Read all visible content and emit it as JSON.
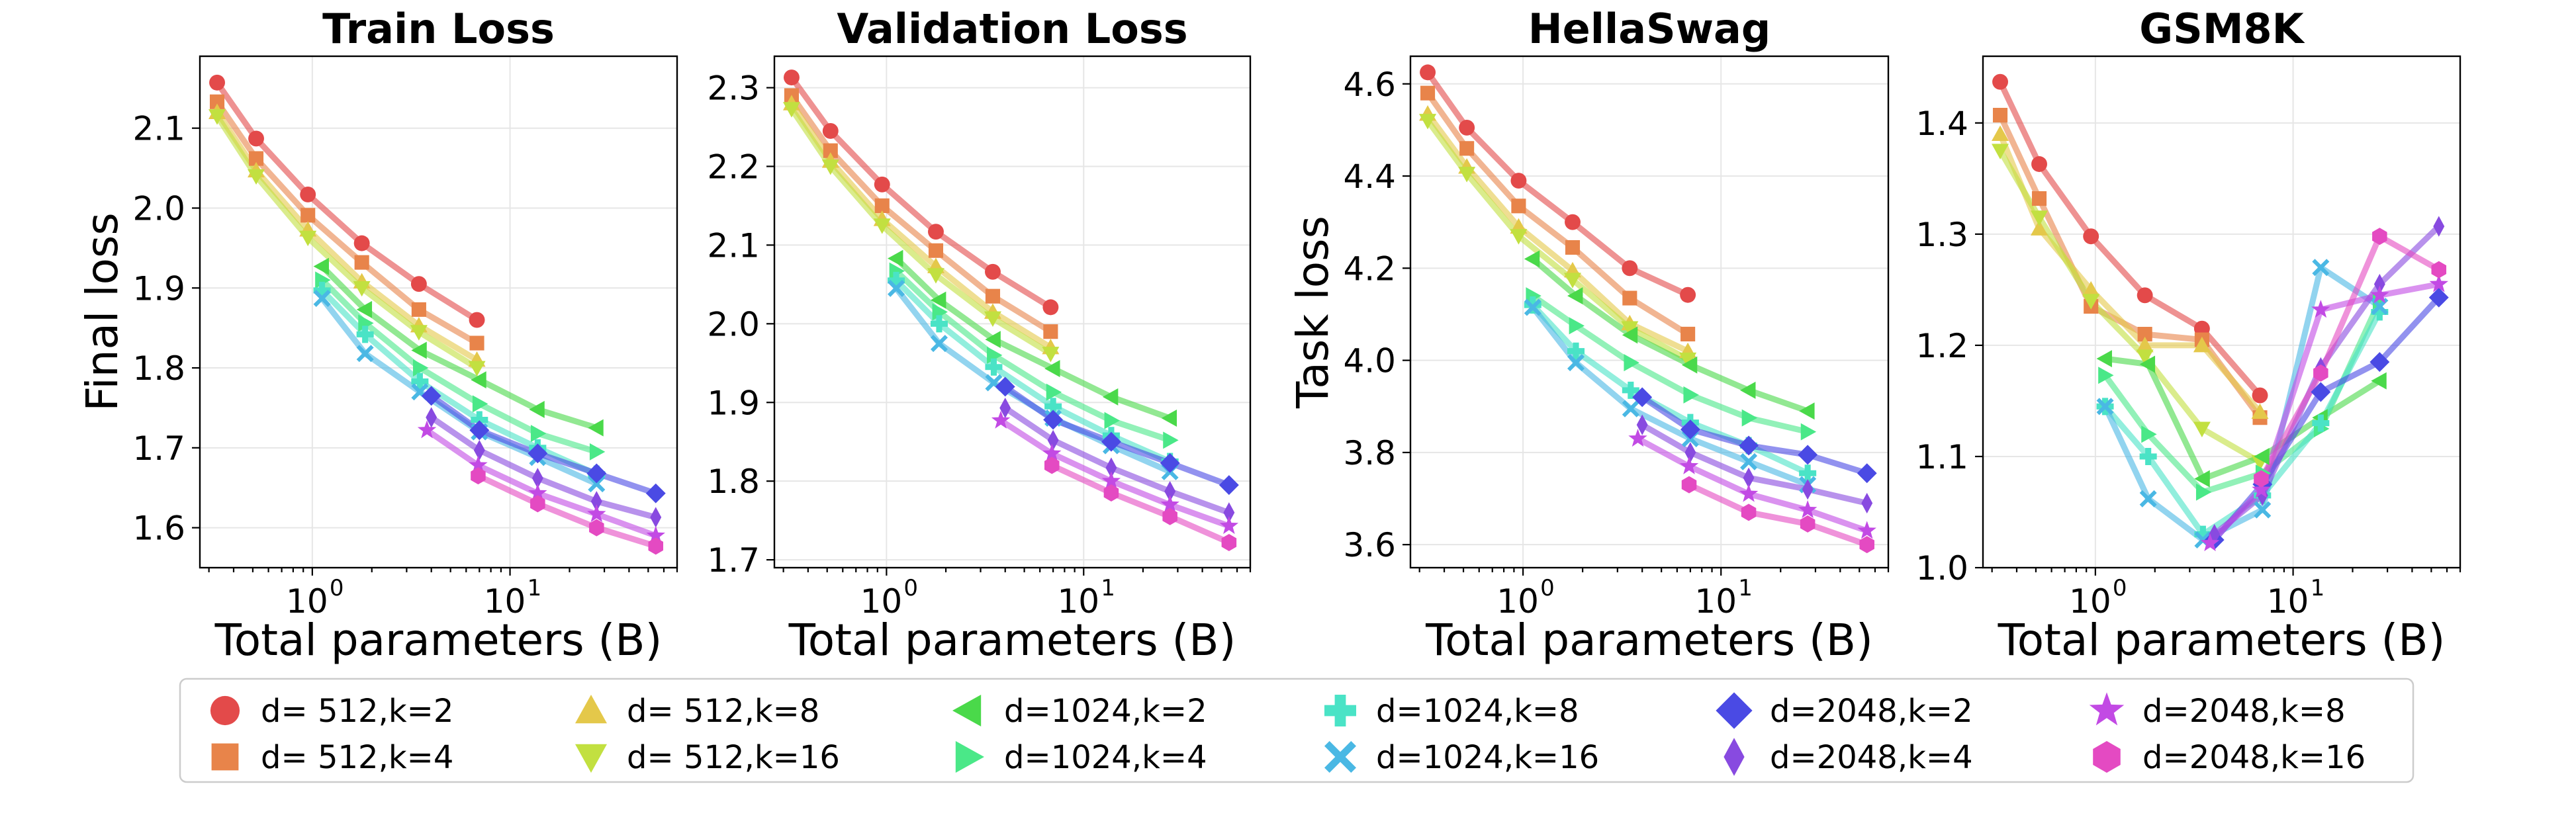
{
  "figure": {
    "x_axis_label": "Total parameters (B)",
    "legend_location": "bottom-center"
  },
  "chart_data": [
    {
      "type": "line",
      "title": "Train Loss",
      "xlabel": "Total parameters (B)",
      "ylabel": "Final loss",
      "xscale": "log",
      "xlim": [
        0.27,
        70
      ],
      "ylim": [
        1.55,
        2.19
      ],
      "yticks": [
        1.6,
        1.7,
        1.8,
        1.9,
        2.0,
        2.1
      ],
      "ytick_labels": [
        "1.6",
        "1.7",
        "1.8",
        "1.9",
        "2.0",
        "2.1"
      ],
      "series": [
        {
          "id": "d512k2",
          "x": [
            0.33,
            0.52,
            0.95,
            1.78,
            3.46,
            6.8
          ],
          "y": [
            2.157,
            2.087,
            2.017,
            1.956,
            1.905,
            1.86
          ]
        },
        {
          "id": "d512k4",
          "x": [
            0.33,
            0.52,
            0.95,
            1.78,
            3.46,
            6.8
          ],
          "y": [
            2.133,
            2.062,
            1.991,
            1.932,
            1.873,
            1.831
          ]
        },
        {
          "id": "d512k8",
          "x": [
            0.33,
            0.52,
            0.95,
            1.78,
            3.46,
            6.8
          ],
          "y": [
            2.12,
            2.047,
            1.973,
            1.908,
            1.853,
            1.81
          ]
        },
        {
          "id": "d512k16",
          "x": [
            0.33,
            0.52,
            0.95,
            1.78,
            3.46,
            6.8
          ],
          "y": [
            2.115,
            2.04,
            1.963,
            1.9,
            1.845,
            1.8
          ]
        },
        {
          "id": "d1024k2",
          "x": [
            1.12,
            1.85,
            3.5,
            7.0,
            13.8,
            27.4
          ],
          "y": [
            1.927,
            1.873,
            1.822,
            1.785,
            1.748,
            1.725
          ]
        },
        {
          "id": "d1024k4",
          "x": [
            1.12,
            1.85,
            3.5,
            7.0,
            13.8,
            27.4
          ],
          "y": [
            1.91,
            1.856,
            1.8,
            1.755,
            1.718,
            1.695
          ]
        },
        {
          "id": "d1024k8",
          "x": [
            1.12,
            1.85,
            3.5,
            7.0,
            13.8,
            27.4
          ],
          "y": [
            1.897,
            1.842,
            1.783,
            1.735,
            1.7,
            1.667
          ]
        },
        {
          "id": "d1024k16",
          "x": [
            1.12,
            1.85,
            3.5,
            7.0,
            13.8,
            27.4
          ],
          "y": [
            1.887,
            1.818,
            1.77,
            1.72,
            1.688,
            1.655
          ]
        },
        {
          "id": "d2048k2",
          "x": [
            4.0,
            7.0,
            13.8,
            27.4,
            54.6
          ],
          "y": [
            1.765,
            1.722,
            1.693,
            1.668,
            1.643
          ]
        },
        {
          "id": "d2048k4",
          "x": [
            4.0,
            7.0,
            13.8,
            27.4,
            54.6
          ],
          "y": [
            1.738,
            1.697,
            1.662,
            1.633,
            1.613
          ]
        },
        {
          "id": "d2048k8",
          "x": [
            3.8,
            6.9,
            13.8,
            27.4,
            54.6
          ],
          "y": [
            1.722,
            1.678,
            1.643,
            1.617,
            1.59
          ]
        },
        {
          "id": "d2048k16",
          "x": [
            6.9,
            13.8,
            27.4,
            54.6
          ],
          "y": [
            1.665,
            1.63,
            1.6,
            1.577
          ]
        }
      ]
    },
    {
      "type": "line",
      "title": "Validation Loss",
      "xlabel": "Total parameters (B)",
      "ylabel": "",
      "xscale": "log",
      "xlim": [
        0.27,
        70
      ],
      "ylim": [
        1.69,
        2.34
      ],
      "yticks": [
        1.7,
        1.8,
        1.9,
        2.0,
        2.1,
        2.2,
        2.3
      ],
      "ytick_labels": [
        "1.7",
        "1.8",
        "1.9",
        "2.0",
        "2.1",
        "2.2",
        "2.3"
      ],
      "series": [
        {
          "id": "d512k2",
          "x": [
            0.33,
            0.52,
            0.95,
            1.78,
            3.46,
            6.8
          ],
          "y": [
            2.313,
            2.245,
            2.177,
            2.117,
            2.066,
            2.021
          ]
        },
        {
          "id": "d512k4",
          "x": [
            0.33,
            0.52,
            0.95,
            1.78,
            3.46,
            6.8
          ],
          "y": [
            2.29,
            2.22,
            2.15,
            2.093,
            2.035,
            1.99
          ]
        },
        {
          "id": "d512k8",
          "x": [
            0.33,
            0.52,
            0.95,
            1.78,
            3.46,
            6.8
          ],
          "y": [
            2.28,
            2.207,
            2.133,
            2.073,
            2.015,
            1.97
          ]
        },
        {
          "id": "d512k16",
          "x": [
            0.33,
            0.52,
            0.95,
            1.78,
            3.46,
            6.8
          ],
          "y": [
            2.273,
            2.2,
            2.125,
            2.062,
            2.007,
            1.962
          ]
        },
        {
          "id": "d1024k2",
          "x": [
            1.12,
            1.85,
            3.5,
            7.0,
            13.8,
            27.4
          ],
          "y": [
            2.083,
            2.03,
            1.98,
            1.943,
            1.907,
            1.88
          ]
        },
        {
          "id": "d1024k4",
          "x": [
            1.12,
            1.85,
            3.5,
            7.0,
            13.8,
            27.4
          ],
          "y": [
            2.067,
            2.015,
            1.96,
            1.913,
            1.877,
            1.852
          ]
        },
        {
          "id": "d1024k8",
          "x": [
            1.12,
            1.85,
            3.5,
            7.0,
            13.8,
            27.4
          ],
          "y": [
            2.055,
            2.0,
            1.945,
            1.895,
            1.858,
            1.825
          ]
        },
        {
          "id": "d1024k16",
          "x": [
            1.12,
            1.85,
            3.5,
            7.0,
            13.8,
            27.4
          ],
          "y": [
            2.045,
            1.975,
            1.925,
            1.88,
            1.845,
            1.812
          ]
        },
        {
          "id": "d2048k2",
          "x": [
            4.0,
            7.0,
            13.8,
            27.4,
            54.6
          ],
          "y": [
            1.92,
            1.878,
            1.85,
            1.823,
            1.795
          ]
        },
        {
          "id": "d2048k4",
          "x": [
            4.0,
            7.0,
            13.8,
            27.4,
            54.6
          ],
          "y": [
            1.893,
            1.852,
            1.817,
            1.787,
            1.76
          ]
        },
        {
          "id": "d2048k8",
          "x": [
            3.8,
            6.9,
            13.8,
            27.4,
            54.6
          ],
          "y": [
            1.877,
            1.835,
            1.8,
            1.77,
            1.743
          ]
        },
        {
          "id": "d2048k16",
          "x": [
            6.9,
            13.8,
            27.4,
            54.6
          ],
          "y": [
            1.82,
            1.785,
            1.755,
            1.722
          ]
        }
      ]
    },
    {
      "type": "line",
      "title": "HellaSwag",
      "xlabel": "Total parameters (B)",
      "ylabel": "Task loss",
      "xscale": "log",
      "xlim": [
        0.27,
        70
      ],
      "ylim": [
        3.55,
        4.66
      ],
      "yticks": [
        3.6,
        3.8,
        4.0,
        4.2,
        4.4,
        4.6
      ],
      "ytick_labels": [
        "3.6",
        "3.8",
        "4.0",
        "4.2",
        "4.4",
        "4.6"
      ],
      "series": [
        {
          "id": "d512k2",
          "x": [
            0.33,
            0.52,
            0.95,
            1.78,
            3.46,
            6.8
          ],
          "y": [
            4.625,
            4.505,
            4.39,
            4.3,
            4.2,
            4.142
          ]
        },
        {
          "id": "d512k4",
          "x": [
            0.33,
            0.52,
            0.95,
            1.78,
            3.46,
            6.8
          ],
          "y": [
            4.58,
            4.46,
            4.335,
            4.245,
            4.135,
            4.057
          ]
        },
        {
          "id": "d512k8",
          "x": [
            0.33,
            0.52,
            0.95,
            1.78,
            3.46,
            6.8
          ],
          "y": [
            4.535,
            4.42,
            4.29,
            4.195,
            4.08,
            4.02
          ]
        },
        {
          "id": "d512k16",
          "x": [
            0.33,
            0.52,
            0.95,
            1.78,
            3.46,
            6.8
          ],
          "y": [
            4.52,
            4.405,
            4.27,
            4.175,
            4.07,
            4.002
          ]
        },
        {
          "id": "d1024k2",
          "x": [
            1.12,
            1.85,
            3.5,
            7.0,
            13.8,
            27.4
          ],
          "y": [
            4.22,
            4.14,
            4.055,
            3.99,
            3.935,
            3.89
          ]
        },
        {
          "id": "d1024k4",
          "x": [
            1.12,
            1.85,
            3.5,
            7.0,
            13.8,
            27.4
          ],
          "y": [
            4.14,
            4.075,
            3.995,
            3.925,
            3.875,
            3.845
          ]
        },
        {
          "id": "d1024k8",
          "x": [
            1.12,
            1.85,
            3.5,
            7.0,
            13.8,
            27.4
          ],
          "y": [
            4.12,
            4.02,
            3.935,
            3.865,
            3.815,
            3.755
          ]
        },
        {
          "id": "d1024k16",
          "x": [
            1.12,
            1.85,
            3.5,
            7.0,
            13.8,
            27.4
          ],
          "y": [
            4.115,
            3.995,
            3.895,
            3.83,
            3.78,
            3.73
          ]
        },
        {
          "id": "d2048k2",
          "x": [
            4.0,
            7.0,
            13.8,
            27.4,
            54.6
          ],
          "y": [
            3.92,
            3.85,
            3.815,
            3.795,
            3.755
          ]
        },
        {
          "id": "d2048k4",
          "x": [
            4.0,
            7.0,
            13.8,
            27.4,
            54.6
          ],
          "y": [
            3.86,
            3.8,
            3.745,
            3.72,
            3.69
          ]
        },
        {
          "id": "d2048k8",
          "x": [
            3.8,
            6.9,
            13.8,
            27.4,
            54.6
          ],
          "y": [
            3.83,
            3.77,
            3.71,
            3.675,
            3.63
          ]
        },
        {
          "id": "d2048k16",
          "x": [
            6.9,
            13.8,
            27.4,
            54.6
          ],
          "y": [
            3.73,
            3.67,
            3.645,
            3.6
          ]
        }
      ]
    },
    {
      "type": "line",
      "title": "GSM8K",
      "xlabel": "Total parameters (B)",
      "ylabel": "",
      "xscale": "log",
      "xlim": [
        0.27,
        70
      ],
      "ylim": [
        1.0,
        1.46
      ],
      "yticks": [
        1.0,
        1.1,
        1.2,
        1.3,
        1.4
      ],
      "ytick_labels": [
        "1.0",
        "1.1",
        "1.2",
        "1.3",
        "1.4"
      ],
      "series": [
        {
          "id": "d512k2",
          "x": [
            0.33,
            0.52,
            0.95,
            1.78,
            3.46,
            6.8
          ],
          "y": [
            1.437,
            1.363,
            1.298,
            1.245,
            1.215,
            1.155
          ]
        },
        {
          "id": "d512k4",
          "x": [
            0.33,
            0.52,
            0.95,
            1.78,
            3.46,
            6.8
          ],
          "y": [
            1.407,
            1.332,
            1.235,
            1.21,
            1.205,
            1.135
          ]
        },
        {
          "id": "d512k8",
          "x": [
            0.33,
            0.52,
            0.95,
            1.78,
            3.46,
            6.8
          ],
          "y": [
            1.39,
            1.305,
            1.25,
            1.2,
            1.2,
            1.14
          ]
        },
        {
          "id": "d512k16",
          "x": [
            0.33,
            0.52,
            0.95,
            1.78,
            3.46,
            6.8
          ],
          "y": [
            1.375,
            1.315,
            1.24,
            1.19,
            1.125,
            1.095
          ]
        },
        {
          "id": "d1024k2",
          "x": [
            1.12,
            1.85,
            3.5,
            7.0,
            13.8,
            27.4
          ],
          "y": [
            1.188,
            1.183,
            1.08,
            1.1,
            1.135,
            1.168
          ]
        },
        {
          "id": "d1024k4",
          "x": [
            1.12,
            1.85,
            3.5,
            7.0,
            13.8,
            27.4
          ],
          "y": [
            1.173,
            1.12,
            1.068,
            1.085,
            1.125,
            1.24
          ]
        },
        {
          "id": "d1024k8",
          "x": [
            1.12,
            1.85,
            3.5,
            7.0,
            13.8,
            27.4
          ],
          "y": [
            1.145,
            1.1,
            1.03,
            1.065,
            1.13,
            1.23
          ]
        },
        {
          "id": "d1024k16",
          "x": [
            1.12,
            1.85,
            3.5,
            7.0,
            13.8,
            27.4
          ],
          "y": [
            1.145,
            1.062,
            1.025,
            1.052,
            1.27,
            1.235
          ]
        },
        {
          "id": "d2048k2",
          "x": [
            4.0,
            7.0,
            13.8,
            27.4,
            54.6
          ],
          "y": [
            1.025,
            1.075,
            1.158,
            1.185,
            1.243
          ]
        },
        {
          "id": "d2048k4",
          "x": [
            4.0,
            7.0,
            13.8,
            27.4,
            54.6
          ],
          "y": [
            1.03,
            1.065,
            1.18,
            1.255,
            1.307
          ]
        },
        {
          "id": "d2048k8",
          "x": [
            3.8,
            6.9,
            13.8,
            27.4,
            54.6
          ],
          "y": [
            1.022,
            1.07,
            1.232,
            1.245,
            1.255
          ]
        },
        {
          "id": "d2048k16",
          "x": [
            6.9,
            13.8,
            27.4,
            54.6
          ],
          "y": [
            1.08,
            1.175,
            1.298,
            1.268
          ]
        }
      ]
    }
  ],
  "legend": [
    {
      "id": "d512k2",
      "label": "d= 512,k=2",
      "color": "#e34a4a",
      "marker": "circle"
    },
    {
      "id": "d512k4",
      "label": "d= 512,k=4",
      "color": "#e8844a",
      "marker": "square"
    },
    {
      "id": "d512k8",
      "label": "d= 512,k=8",
      "color": "#e4c84a",
      "marker": "triangle-up"
    },
    {
      "id": "d512k16",
      "label": "d= 512,k=16",
      "color": "#c2e040",
      "marker": "triangle-down"
    },
    {
      "id": "d1024k2",
      "label": "d=1024,k=2",
      "color": "#4ad94a",
      "marker": "triangle-left"
    },
    {
      "id": "d1024k4",
      "label": "d=1024,k=4",
      "color": "#4ae888",
      "marker": "triangle-right"
    },
    {
      "id": "d1024k8",
      "label": "d=1024,k=8",
      "color": "#4ae3c6",
      "marker": "plus"
    },
    {
      "id": "d1024k16",
      "label": "d=1024,k=16",
      "color": "#4ab8e4",
      "marker": "x"
    },
    {
      "id": "d2048k2",
      "label": "d=2048,k=2",
      "color": "#4a4ae4",
      "marker": "diamond"
    },
    {
      "id": "d2048k4",
      "label": "d=2048,k=4",
      "color": "#884ae0",
      "marker": "thin-diamond"
    },
    {
      "id": "d2048k8",
      "label": "d=2048,k=8",
      "color": "#c24ae4",
      "marker": "star"
    },
    {
      "id": "d2048k16",
      "label": "d=2048,k=16",
      "color": "#e44ac2",
      "marker": "hexagon"
    }
  ]
}
